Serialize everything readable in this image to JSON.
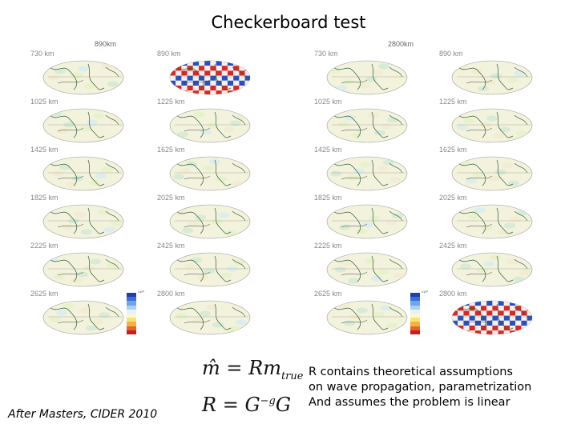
{
  "title": "Checkerboard test",
  "left_group": {
    "header": "890km",
    "columns": [
      [
        "730 km",
        "1025 km",
        "1425 km",
        "1825 km",
        "2225 km",
        "2625 km"
      ],
      [
        "890 km",
        "1225 km",
        "1625 km",
        "2025 km",
        "2425 km",
        "2800 km"
      ]
    ],
    "input_pattern_panel": "890 km",
    "colorbar_label": "x10³"
  },
  "right_group": {
    "header": "2800km",
    "columns": [
      [
        "730 km",
        "1025 km",
        "1425 km",
        "1825 km",
        "2225 km",
        "2625 km"
      ],
      [
        "890 km",
        "1225 km",
        "1625 km",
        "2025 km",
        "2425 km",
        "2800 km"
      ]
    ],
    "input_pattern_panel": "2800 km",
    "colorbar_label": "x10³"
  },
  "colorbar_colors": [
    "#1d3fb0",
    "#3b6fd6",
    "#6fa5e8",
    "#a9d1f0",
    "#e6f3f0",
    "#fbf7d6",
    "#f7e27a",
    "#f4b43c",
    "#e6642a",
    "#c81e1e"
  ],
  "equations": {
    "eq1_lhs": "m̂ = ",
    "eq1_rhs": "Rm",
    "eq1_sub": "true",
    "eq2_lhs": "R = G",
    "eq2_sup": "−g",
    "eq2_rhs": "G"
  },
  "credit": "After Masters, CIDER 2010",
  "note_lines": [
    "R contains theoretical assumptions",
    "on wave propagation, parametrization",
    "And assumes the problem is linear"
  ]
}
